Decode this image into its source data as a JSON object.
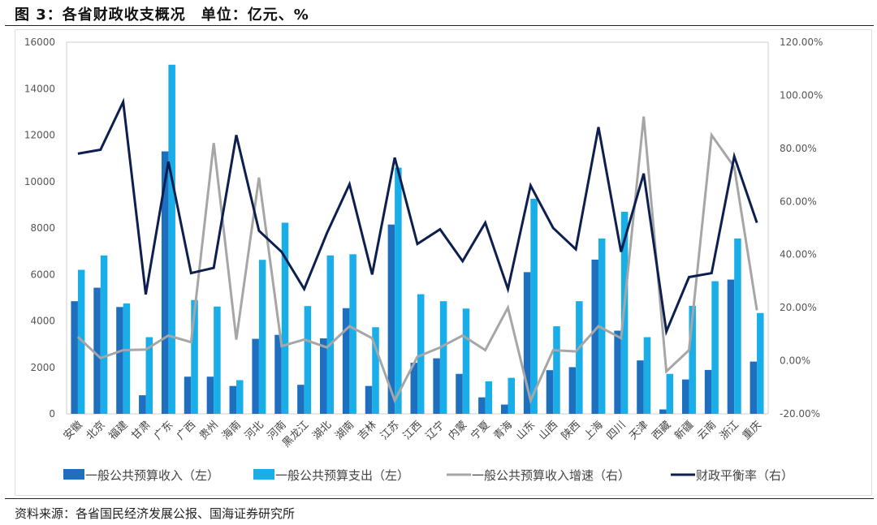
{
  "header": {
    "title": "图 3：各省财政收支概况　单位：亿元、%"
  },
  "footer": {
    "source": "资料来源：各省国民经济发展公报、国海证券研究所"
  },
  "chart_data": {
    "type": "bar+line",
    "title": "",
    "categories": [
      "安徽",
      "北京",
      "福建",
      "甘肃",
      "广东",
      "广西",
      "贵州",
      "海南",
      "河北",
      "河南",
      "黑龙江",
      "湖北",
      "湖南",
      "吉林",
      "江苏",
      "江西",
      "辽宁",
      "内蒙",
      "宁夏",
      "青海",
      "山东",
      "山西",
      "陕西",
      "上海",
      "四川",
      "天津",
      "西藏",
      "新疆",
      "云南",
      "浙江",
      "重庆"
    ],
    "left_axis": {
      "range": [
        0,
        16000
      ],
      "ticks": [
        "0",
        "2000",
        "4000",
        "6000",
        "8000",
        "10000",
        "12000",
        "14000",
        "16000"
      ]
    },
    "right_axis": {
      "range": [
        -20,
        120
      ],
      "ticks": [
        "-20.00%",
        "0.00%",
        "20.00%",
        "40.00%",
        "60.00%",
        "80.00%",
        "100.00%",
        "120.00%"
      ]
    },
    "grid": false,
    "legend_position": "bottom",
    "series": [
      {
        "name": "一般公共预算收入（左）",
        "type": "bar",
        "axis": "left",
        "color": "#1F6FBF",
        "values": [
          4850,
          5430,
          4600,
          800,
          11300,
          1600,
          1600,
          1200,
          3230,
          3400,
          1250,
          3250,
          4550,
          1200,
          8150,
          2200,
          2390,
          1720,
          710,
          400,
          6100,
          1880,
          2010,
          6640,
          3580,
          2300,
          190,
          1480,
          1890,
          5780,
          2250
        ]
      },
      {
        "name": "一般公共预算支出（左）",
        "type": "bar",
        "axis": "left",
        "color": "#1AAEE8",
        "values": [
          6200,
          6820,
          4750,
          3300,
          15030,
          4900,
          4620,
          1450,
          6630,
          8230,
          4640,
          6820,
          6870,
          3730,
          10600,
          5150,
          4850,
          4530,
          1400,
          1550,
          9260,
          3770,
          4850,
          7550,
          8700,
          3300,
          1720,
          4650,
          5710,
          7550,
          4340
        ]
      },
      {
        "name": "一般公共预算收入增速（右）",
        "type": "line",
        "axis": "right",
        "color": "#A6A6A6",
        "values": [
          9,
          1,
          4,
          4.2,
          9.5,
          7,
          82,
          8,
          69,
          5.5,
          8,
          5,
          13,
          8.5,
          -15,
          1.5,
          5,
          9.5,
          4,
          20,
          -15,
          4,
          3.5,
          13,
          8.5,
          92,
          -4,
          4,
          85,
          73,
          19
        ]
      },
      {
        "name": "财政平衡率（右）",
        "type": "line",
        "axis": "right",
        "color": "#0D1F4F",
        "values": [
          78,
          79.5,
          97.5,
          25,
          75,
          33,
          35,
          85,
          49,
          41,
          27,
          48,
          66.5,
          32.5,
          76.5,
          44,
          49.5,
          37.5,
          52,
          27,
          66,
          50,
          42,
          88,
          41,
          70.5,
          11,
          31.5,
          33,
          77,
          52
        ]
      }
    ]
  }
}
